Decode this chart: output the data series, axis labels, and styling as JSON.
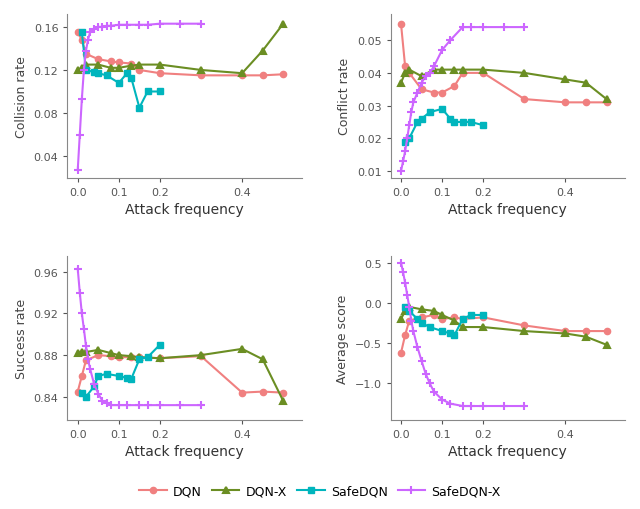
{
  "colors": {
    "DQN": "#F08080",
    "DQN-X": "#6B8E23",
    "SafeDQN": "#00B5BD",
    "SafeDQN-X": "#CC66FF"
  },
  "collision_rate": {
    "DQN": {
      "x": [
        0.0,
        0.01,
        0.02,
        0.05,
        0.08,
        0.1,
        0.13,
        0.15,
        0.2,
        0.3,
        0.4,
        0.45,
        0.5
      ],
      "y": [
        0.155,
        0.148,
        0.135,
        0.13,
        0.128,
        0.127,
        0.126,
        0.12,
        0.117,
        0.115,
        0.115,
        0.115,
        0.116
      ]
    },
    "DQN-X": {
      "x": [
        0.0,
        0.01,
        0.02,
        0.05,
        0.08,
        0.1,
        0.13,
        0.15,
        0.2,
        0.3,
        0.4,
        0.45,
        0.5
      ],
      "y": [
        0.12,
        0.122,
        0.125,
        0.125,
        0.122,
        0.122,
        0.124,
        0.125,
        0.125,
        0.12,
        0.117,
        0.138,
        0.163
      ]
    },
    "SafeDQN": {
      "x": [
        0.01,
        0.02,
        0.04,
        0.05,
        0.07,
        0.1,
        0.12,
        0.13,
        0.15,
        0.17,
        0.2
      ],
      "y": [
        0.155,
        0.12,
        0.118,
        0.117,
        0.115,
        0.108,
        0.117,
        0.113,
        0.085,
        0.1,
        0.1
      ]
    },
    "SafeDQN-X": {
      "x": [
        0.0,
        0.005,
        0.01,
        0.015,
        0.02,
        0.025,
        0.03,
        0.04,
        0.05,
        0.06,
        0.07,
        0.08,
        0.1,
        0.12,
        0.15,
        0.17,
        0.2,
        0.25,
        0.3
      ],
      "y": [
        0.027,
        0.06,
        0.093,
        0.12,
        0.138,
        0.148,
        0.155,
        0.158,
        0.16,
        0.16,
        0.161,
        0.161,
        0.162,
        0.162,
        0.162,
        0.162,
        0.163,
        0.163,
        0.163
      ]
    }
  },
  "conflict_rate": {
    "DQN": {
      "x": [
        0.0,
        0.01,
        0.02,
        0.05,
        0.08,
        0.1,
        0.13,
        0.15,
        0.2,
        0.3,
        0.4,
        0.45,
        0.5
      ],
      "y": [
        0.055,
        0.042,
        0.04,
        0.035,
        0.034,
        0.034,
        0.036,
        0.04,
        0.04,
        0.032,
        0.031,
        0.031,
        0.031
      ]
    },
    "DQN-X": {
      "x": [
        0.0,
        0.01,
        0.02,
        0.05,
        0.08,
        0.1,
        0.13,
        0.15,
        0.2,
        0.3,
        0.4,
        0.45,
        0.5
      ],
      "y": [
        0.037,
        0.04,
        0.041,
        0.039,
        0.041,
        0.041,
        0.041,
        0.041,
        0.041,
        0.04,
        0.038,
        0.037,
        0.032
      ]
    },
    "SafeDQN": {
      "x": [
        0.01,
        0.02,
        0.04,
        0.05,
        0.07,
        0.1,
        0.12,
        0.13,
        0.15,
        0.17,
        0.2
      ],
      "y": [
        0.019,
        0.02,
        0.025,
        0.026,
        0.028,
        0.029,
        0.026,
        0.025,
        0.025,
        0.025,
        0.024
      ]
    },
    "SafeDQN-X": {
      "x": [
        0.0,
        0.005,
        0.01,
        0.015,
        0.02,
        0.025,
        0.03,
        0.04,
        0.05,
        0.06,
        0.07,
        0.08,
        0.1,
        0.12,
        0.15,
        0.17,
        0.2,
        0.25,
        0.3
      ],
      "y": [
        0.01,
        0.013,
        0.016,
        0.02,
        0.024,
        0.028,
        0.031,
        0.034,
        0.037,
        0.039,
        0.04,
        0.042,
        0.047,
        0.05,
        0.054,
        0.054,
        0.054,
        0.054,
        0.054
      ]
    }
  },
  "success_rate": {
    "DQN": {
      "x": [
        0.0,
        0.01,
        0.02,
        0.05,
        0.08,
        0.1,
        0.13,
        0.15,
        0.2,
        0.3,
        0.4,
        0.45,
        0.5
      ],
      "y": [
        0.845,
        0.86,
        0.875,
        0.88,
        0.879,
        0.878,
        0.878,
        0.878,
        0.877,
        0.879,
        0.844,
        0.845,
        0.844
      ]
    },
    "DQN-X": {
      "x": [
        0.0,
        0.01,
        0.02,
        0.05,
        0.08,
        0.1,
        0.13,
        0.15,
        0.2,
        0.3,
        0.4,
        0.45,
        0.5
      ],
      "y": [
        0.882,
        0.883,
        0.883,
        0.885,
        0.882,
        0.88,
        0.879,
        0.878,
        0.877,
        0.88,
        0.886,
        0.876,
        0.836
      ]
    },
    "SafeDQN": {
      "x": [
        0.01,
        0.02,
        0.04,
        0.05,
        0.07,
        0.1,
        0.12,
        0.13,
        0.15,
        0.17,
        0.2
      ],
      "y": [
        0.844,
        0.84,
        0.85,
        0.86,
        0.862,
        0.86,
        0.858,
        0.857,
        0.876,
        0.878,
        0.89
      ]
    },
    "SafeDQN-X": {
      "x": [
        0.0,
        0.005,
        0.01,
        0.015,
        0.02,
        0.025,
        0.03,
        0.04,
        0.05,
        0.06,
        0.07,
        0.08,
        0.1,
        0.12,
        0.15,
        0.17,
        0.2,
        0.25,
        0.3
      ],
      "y": [
        0.963,
        0.94,
        0.92,
        0.905,
        0.889,
        0.876,
        0.867,
        0.852,
        0.843,
        0.836,
        0.834,
        0.832,
        0.832,
        0.832,
        0.832,
        0.832,
        0.832,
        0.832,
        0.832
      ]
    }
  },
  "average_score": {
    "DQN": {
      "x": [
        0.0,
        0.01,
        0.02,
        0.05,
        0.08,
        0.1,
        0.13,
        0.15,
        0.2,
        0.3,
        0.4,
        0.45,
        0.5
      ],
      "y": [
        -0.62,
        -0.4,
        -0.22,
        -0.18,
        -0.15,
        -0.2,
        -0.18,
        -0.2,
        -0.18,
        -0.28,
        -0.35,
        -0.35,
        -0.35
      ]
    },
    "DQN-X": {
      "x": [
        0.0,
        0.01,
        0.02,
        0.05,
        0.08,
        0.1,
        0.13,
        0.15,
        0.2,
        0.3,
        0.4,
        0.45,
        0.5
      ],
      "y": [
        -0.2,
        -0.1,
        -0.05,
        -0.08,
        -0.1,
        -0.15,
        -0.22,
        -0.3,
        -0.3,
        -0.35,
        -0.38,
        -0.42,
        -0.52
      ]
    },
    "SafeDQN": {
      "x": [
        0.01,
        0.02,
        0.04,
        0.05,
        0.07,
        0.1,
        0.12,
        0.13,
        0.15,
        0.17,
        0.2
      ],
      "y": [
        -0.05,
        -0.1,
        -0.2,
        -0.25,
        -0.3,
        -0.35,
        -0.38,
        -0.4,
        -0.2,
        -0.15,
        -0.15
      ]
    },
    "SafeDQN-X": {
      "x": [
        0.0,
        0.005,
        0.01,
        0.015,
        0.02,
        0.025,
        0.03,
        0.04,
        0.05,
        0.06,
        0.07,
        0.08,
        0.1,
        0.12,
        0.15,
        0.17,
        0.2,
        0.25,
        0.3
      ],
      "y": [
        0.5,
        0.38,
        0.25,
        0.1,
        -0.05,
        -0.22,
        -0.35,
        -0.55,
        -0.72,
        -0.88,
        -1.0,
        -1.1,
        -1.2,
        -1.25,
        -1.28,
        -1.28,
        -1.28,
        -1.28,
        -1.28
      ]
    }
  },
  "ylims": {
    "collision_rate": [
      0.02,
      0.172
    ],
    "conflict_rate": [
      0.008,
      0.058
    ],
    "success_rate": [
      0.818,
      0.975
    ],
    "average_score": [
      -1.45,
      0.58
    ]
  },
  "yticks": {
    "collision_rate": [
      0.04,
      0.08,
      0.12,
      0.16
    ],
    "conflict_rate": [
      0.01,
      0.02,
      0.03,
      0.04,
      0.05
    ],
    "success_rate": [
      0.84,
      0.88,
      0.92,
      0.96
    ],
    "average_score": [
      -1.0,
      -0.5,
      0.0,
      0.5
    ]
  },
  "xlim": [
    -0.025,
    0.545
  ],
  "xticks": [
    0.0,
    0.1,
    0.2,
    0.4
  ],
  "xlabel": "Attack frequency",
  "background_color": "#FFFFFF",
  "legend_labels": [
    "DQN",
    "DQN-X",
    "SafeDQN",
    "SafeDQN-X"
  ],
  "markers": {
    "DQN": "o",
    "DQN-X": "^",
    "SafeDQN": "s",
    "SafeDQN-X": "+"
  },
  "linewidth": 1.5,
  "markersize": 4.5
}
